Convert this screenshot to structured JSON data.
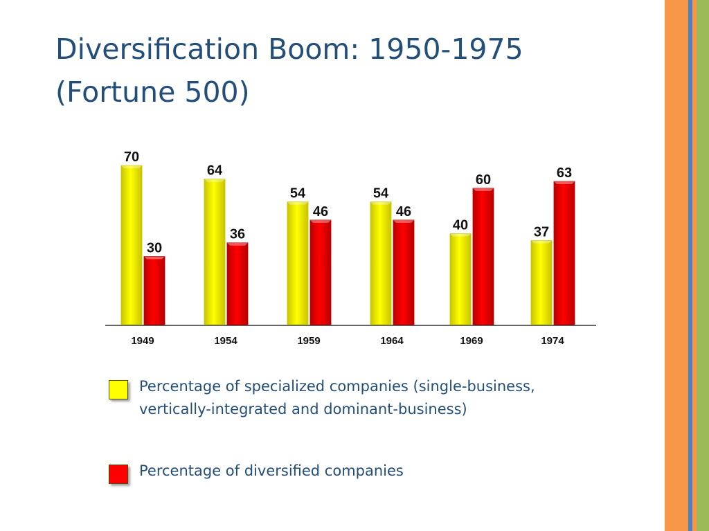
{
  "slide": {
    "title_line1": "Diversification Boom: 1950-1975",
    "title_line2": "(Fortune 500)"
  },
  "colors": {
    "title": "#244e7a",
    "specialized": "#ffff00",
    "specialized_edge": "#c9c400",
    "diversified": "#ff0000",
    "diversified_edge": "#b80000",
    "stripes": [
      "#f79646",
      "#4f81bd",
      "#f79646",
      "#9bbb59"
    ]
  },
  "chart_data": {
    "type": "bar",
    "title": "",
    "xlabel": "",
    "ylabel": "",
    "ylim": [
      0,
      70
    ],
    "grid": false,
    "categories": [
      "1949",
      "1954",
      "1959",
      "1964",
      "1969",
      "1974"
    ],
    "series": [
      {
        "name": "Percentage of specialized companies (single-business, vertically-integrated and dominant-business)",
        "values": [
          70,
          64,
          54,
          54,
          40,
          37
        ]
      },
      {
        "name": "Percentage of diversified companies",
        "values": [
          30,
          36,
          46,
          46,
          60,
          63
        ]
      }
    ]
  },
  "legend": {
    "specialized_line1": "Percentage of specialized companies (single-business,",
    "specialized_line2": "vertically-integrated and dominant-business)",
    "diversified": "Percentage of diversified companies"
  }
}
